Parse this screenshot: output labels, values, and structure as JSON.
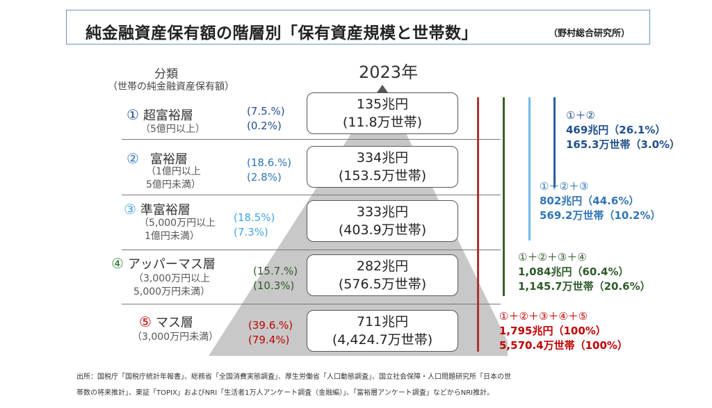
{
  "title": "純金融資産保有額の階層別「保有資産規模と世帯数」",
  "source": "（野村総合研究所）",
  "year": "2023年",
  "classification": {
    "heading": "分類",
    "subheading": "（世帯の純金融資産保有額）"
  },
  "colors": {
    "tier1": "#1f4e8c",
    "tier2": "#2e75b6",
    "tier3": "#41a5e0",
    "tier4": "#2e7d32",
    "tier5": "#c00000",
    "line_red": "#b03030",
    "line_green": "#3a5f2a",
    "line_lightblue": "#6db8e8",
    "line_darkblue": "#2a5aa0"
  },
  "tiers": [
    {
      "num": "①",
      "name": "超富裕層",
      "range_line1": "（5億円以上）",
      "range_line2": "",
      "pct_assets": "(7.5.%)",
      "pct_households": "(0.2%)",
      "amount": "135兆円",
      "households": "(11.8万世帯)"
    },
    {
      "num": "②",
      "name": "富裕層",
      "range_line1": "（1億円以上",
      "range_line2": "5億円未満）",
      "pct_assets": "(18.6.%)",
      "pct_households": "(2.8%)",
      "amount": "334兆円",
      "households": "(153.5万世帯)"
    },
    {
      "num": "③",
      "name": "準富裕層",
      "range_line1": "（5,000万円以上",
      "range_line2": "1億円未満）",
      "pct_assets": "(18.5%)",
      "pct_households": "(7.3%)",
      "amount": "333兆円",
      "households": "(403.9万世帯)"
    },
    {
      "num": "④",
      "name": "アッパーマス層",
      "range_line1": "（3,000万円以上",
      "range_line2": "5,000万円未満）",
      "pct_assets": "(15.7.%)",
      "pct_households": "(10.3%)",
      "amount": "282兆円",
      "households": "(576.5万世帯)"
    },
    {
      "num": "⑤",
      "name": "マス層",
      "range_line1": "（3,000万円未満）",
      "range_line2": "",
      "pct_assets": "(39.6.%)",
      "pct_households": "(79.4%)",
      "amount": "711兆円",
      "households": "(4,424.7万世帯)"
    }
  ],
  "sums": [
    {
      "label": "①＋②",
      "amount": "469兆円（26.1%）",
      "households": "165.3万世帯（3.0%）"
    },
    {
      "label": "①＋②＋③",
      "amount": "802兆円（44.6%）",
      "households": "569.2万世帯（10.2%）"
    },
    {
      "label": "①＋②＋③＋④",
      "amount": "1,084兆円（60.4%）",
      "households": "1,145.7万世帯（20.6%）"
    },
    {
      "label": "①＋②＋③＋④＋⑤",
      "amount": "1,795兆円（100%）",
      "households": "5,570.4万世帯（100%）"
    }
  ],
  "footer": {
    "line1": "出所：国税庁「国税庁統計年報書」、総務省「全国消費実態調査」、厚生労働省「人口動態調査」、国立社会保障・人口問題研究所「日本の世",
    "line2": "帯数の将来推計」、東証「TOPIX」およびNRI「生活者1万人アンケート調査（金融編）」、「富裕層アンケート調査」などからNRI推計。"
  }
}
